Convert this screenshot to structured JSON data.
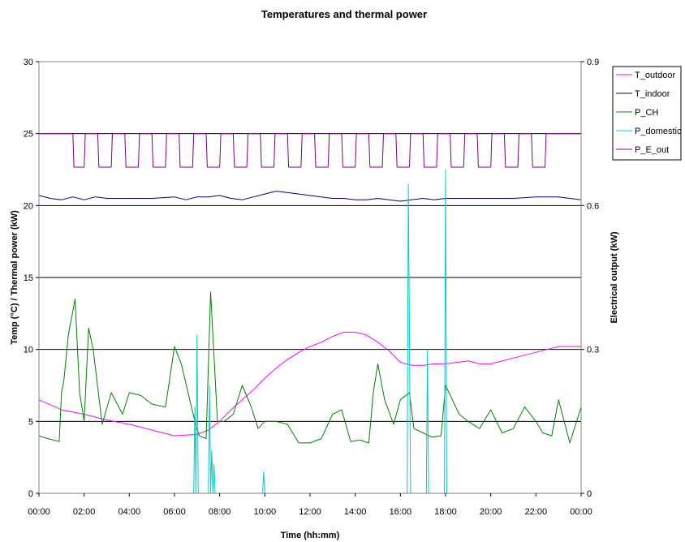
{
  "chart_data": {
    "type": "line",
    "title": "Temperatures and thermal power",
    "xlabel": "Time (hh:mm)",
    "ylabel": "Temp (°C) / Thermal power (kW)",
    "y2label": "Electrical output (kW)",
    "ylim": [
      0,
      30
    ],
    "y2lim": [
      0,
      0.9
    ],
    "yticks": [
      "0",
      "5",
      "10",
      "15",
      "20",
      "25",
      "30"
    ],
    "y2ticks": [
      "0",
      "0.3",
      "0.6",
      "0.9"
    ],
    "xticks": [
      "00:00",
      "02:00",
      "04:00",
      "06:00",
      "08:00",
      "10:00",
      "12:00",
      "14:00",
      "16:00",
      "18:00",
      "20:00",
      "22:00",
      "00:00"
    ],
    "grid": true,
    "legend_position": "right",
    "series": [
      {
        "name": "T_outdoor",
        "color": "#ff00ff",
        "axis": "left",
        "x": [
          0,
          1,
          2,
          3,
          4,
          5,
          6,
          7,
          7.5,
          8,
          8.5,
          9,
          9.5,
          10,
          10.5,
          11,
          11.5,
          12,
          12.5,
          13,
          13.5,
          14,
          14.5,
          15,
          15.5,
          16,
          16.5,
          17,
          17.5,
          18,
          18.5,
          19,
          19.5,
          20,
          20.5,
          21,
          21.5,
          22,
          22.5,
          23,
          23.5,
          24
        ],
        "values": [
          6.5,
          5.8,
          5.5,
          5.1,
          4.8,
          4.4,
          4.0,
          4.1,
          4.4,
          5.0,
          5.8,
          6.5,
          7.2,
          8.0,
          8.7,
          9.3,
          9.8,
          10.2,
          10.5,
          10.9,
          11.2,
          11.2,
          11.0,
          10.5,
          9.9,
          9.1,
          8.9,
          8.9,
          9.0,
          9.0,
          9.1,
          9.2,
          9.0,
          9.0,
          9.2,
          9.4,
          9.6,
          9.8,
          10.0,
          10.2,
          10.2,
          10.2
        ]
      },
      {
        "name": "T_indoor",
        "color": "#000080",
        "axis": "left",
        "x": [
          0,
          0.5,
          1,
          1.5,
          2,
          2.5,
          3,
          4,
          5,
          6,
          6.5,
          7,
          7.5,
          8,
          8.5,
          9,
          9.5,
          10,
          10.5,
          11,
          11.5,
          12,
          12.5,
          13,
          13.5,
          14,
          14.5,
          15,
          15.5,
          16,
          16.5,
          17,
          17.5,
          18,
          18.5,
          19,
          20,
          21,
          22,
          23,
          23.5,
          24
        ],
        "values": [
          20.7,
          20.5,
          20.4,
          20.6,
          20.4,
          20.6,
          20.5,
          20.5,
          20.5,
          20.6,
          20.4,
          20.6,
          20.6,
          20.7,
          20.5,
          20.4,
          20.6,
          20.8,
          21.0,
          20.9,
          20.8,
          20.7,
          20.6,
          20.5,
          20.5,
          20.4,
          20.4,
          20.5,
          20.4,
          20.3,
          20.4,
          20.5,
          20.4,
          20.5,
          20.5,
          20.5,
          20.5,
          20.5,
          20.6,
          20.6,
          20.5,
          20.4
        ]
      },
      {
        "name": "P_CH",
        "color": "#008000",
        "axis": "left",
        "x": [
          0,
          0.4,
          0.9,
          1.0,
          1.1,
          1.3,
          1.6,
          1.8,
          2.0,
          2.2,
          2.4,
          2.8,
          3.2,
          3.7,
          4.0,
          4.5,
          5.0,
          5.6,
          6.0,
          6.3,
          6.6,
          6.9,
          7.1,
          7.4,
          7.6,
          7.9,
          8.2,
          8.6,
          9.0,
          9.4,
          9.7,
          10.0,
          10.5,
          11.0,
          11.5,
          12.0,
          12.5,
          13.0,
          13.4,
          13.8,
          14.2,
          14.6,
          14.8,
          15.0,
          15.3,
          15.7,
          16.0,
          16.4,
          16.6,
          17.0,
          17.4,
          17.8,
          18.0,
          18.3,
          18.6,
          19.0,
          19.5,
          20.0,
          20.5,
          21.0,
          21.5,
          22.0,
          22.3,
          22.7,
          23.0,
          23.5,
          24
        ],
        "values": [
          4.0,
          3.8,
          3.6,
          7.0,
          7.8,
          11.0,
          13.5,
          7.0,
          5.0,
          11.5,
          10.0,
          4.8,
          7.0,
          5.5,
          7.0,
          6.8,
          6.2,
          6.0,
          10.2,
          9.0,
          7.0,
          5.0,
          4.0,
          3.8,
          14.0,
          5.0,
          5.0,
          5.5,
          7.5,
          6.0,
          4.5,
          5.0,
          5.0,
          4.8,
          3.5,
          3.5,
          3.8,
          5.5,
          5.8,
          3.6,
          3.7,
          3.5,
          7.0,
          9.0,
          6.5,
          4.8,
          6.5,
          7.0,
          4.5,
          4.2,
          3.9,
          4.0,
          7.5,
          6.5,
          5.5,
          5.0,
          4.5,
          5.8,
          4.2,
          4.5,
          6.0,
          5.0,
          4.2,
          4.0,
          6.5,
          3.5,
          6.0
        ]
      },
      {
        "name": "P_domestic",
        "color": "#00cccc",
        "axis": "left",
        "x": [
          0,
          6.85,
          6.9,
          6.95,
          7.0,
          7.05,
          7.1,
          7.5,
          7.55,
          7.6,
          7.65,
          7.7,
          7.75,
          7.8,
          9.9,
          9.95,
          10.0,
          16.3,
          16.35,
          16.4,
          16.45,
          16.5,
          17.15,
          17.2,
          17.25,
          17.95,
          18.0,
          18.05,
          24
        ],
        "values": [
          0,
          0,
          6.0,
          0,
          11.0,
          0,
          0,
          0,
          7.5,
          0,
          3.0,
          0,
          2.0,
          0,
          0,
          1.5,
          0,
          0,
          21.5,
          11.0,
          0,
          0,
          0,
          10.0,
          0,
          0,
          22.5,
          0,
          0
        ]
      },
      {
        "name": "P_E_out",
        "color": "#800080",
        "axis": "right",
        "x": [
          0,
          1.5,
          1.55,
          2.0,
          2.05,
          2.6,
          2.65,
          3.2,
          3.25,
          3.8,
          3.85,
          4.4,
          4.45,
          5.0,
          5.05,
          5.6,
          5.65,
          6.2,
          6.25,
          6.8,
          6.85,
          7.4,
          7.45,
          8.0,
          8.05,
          8.6,
          8.65,
          9.2,
          9.25,
          9.8,
          9.85,
          10.4,
          10.45,
          11.0,
          11.05,
          11.6,
          11.65,
          12.2,
          12.25,
          12.8,
          12.85,
          13.4,
          13.45,
          14.0,
          14.05,
          14.6,
          14.65,
          15.2,
          15.25,
          15.8,
          15.85,
          16.4,
          16.45,
          17.0,
          17.05,
          17.6,
          17.65,
          18.2,
          18.25,
          18.8,
          18.85,
          19.4,
          19.45,
          20.0,
          20.05,
          20.6,
          20.65,
          21.2,
          21.25,
          21.8,
          21.85,
          22.4,
          22.45,
          24
        ],
        "values": [
          0.75,
          0.75,
          0.68,
          0.68,
          0.75,
          0.75,
          0.68,
          0.68,
          0.75,
          0.75,
          0.68,
          0.68,
          0.75,
          0.75,
          0.68,
          0.68,
          0.75,
          0.75,
          0.68,
          0.68,
          0.75,
          0.75,
          0.68,
          0.68,
          0.75,
          0.75,
          0.68,
          0.68,
          0.75,
          0.75,
          0.68,
          0.68,
          0.75,
          0.75,
          0.68,
          0.68,
          0.75,
          0.75,
          0.68,
          0.68,
          0.75,
          0.75,
          0.68,
          0.68,
          0.75,
          0.75,
          0.68,
          0.68,
          0.75,
          0.75,
          0.68,
          0.68,
          0.75,
          0.75,
          0.68,
          0.68,
          0.75,
          0.75,
          0.68,
          0.68,
          0.75,
          0.75,
          0.68,
          0.68,
          0.75,
          0.75,
          0.68,
          0.68,
          0.75,
          0.75,
          0.68,
          0.68,
          0.75,
          0.75
        ]
      }
    ]
  }
}
